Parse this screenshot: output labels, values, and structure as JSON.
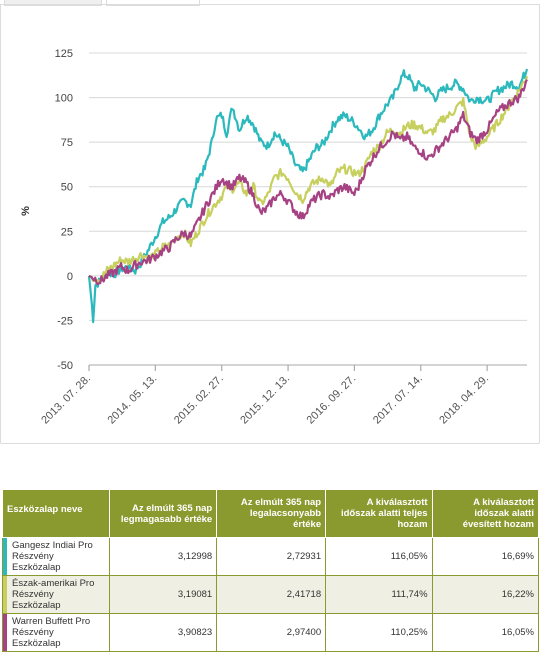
{
  "chart_data": {
    "type": "line",
    "ylabel": "%",
    "ylim": [
      -50,
      125
    ],
    "yticks": [
      -50,
      -25,
      0,
      25,
      50,
      75,
      100,
      125
    ],
    "xticks": [
      "2013. 07. 28.",
      "2014. 05. 13.",
      "2015. 02. 27.",
      "2015. 12. 13.",
      "2016. 09. 27.",
      "2017. 07. 14.",
      "2018. 04. 29."
    ],
    "x_start": "2013-07-28",
    "x_end": "2018-10-20",
    "grid": true,
    "series": [
      {
        "name": "Gangesz Indiai Pro Részvény Eszközalap",
        "color": "#2bb9bd",
        "points": [
          [
            "2013-07-28",
            0
          ],
          [
            "2013-08-05",
            -10
          ],
          [
            "2013-08-15",
            -24
          ],
          [
            "2013-08-25",
            -5
          ],
          [
            "2013-09-15",
            -3
          ],
          [
            "2013-10-15",
            2
          ],
          [
            "2013-11-15",
            1
          ],
          [
            "2013-12-15",
            4
          ],
          [
            "2014-01-15",
            5
          ],
          [
            "2014-02-15",
            3
          ],
          [
            "2014-03-15",
            8
          ],
          [
            "2014-04-15",
            15
          ],
          [
            "2014-05-13",
            22
          ],
          [
            "2014-06-15",
            30
          ],
          [
            "2014-07-15",
            33
          ],
          [
            "2014-08-15",
            38
          ],
          [
            "2014-09-15",
            42
          ],
          [
            "2014-10-15",
            40
          ],
          [
            "2014-11-15",
            55
          ],
          [
            "2014-12-15",
            60
          ],
          [
            "2015-01-15",
            75
          ],
          [
            "2015-02-01",
            88
          ],
          [
            "2015-02-27",
            90
          ],
          [
            "2015-03-20",
            80
          ],
          [
            "2015-04-15",
            95
          ],
          [
            "2015-05-15",
            82
          ],
          [
            "2015-06-15",
            90
          ],
          [
            "2015-07-15",
            85
          ],
          [
            "2015-08-15",
            75
          ],
          [
            "2015-09-15",
            73
          ],
          [
            "2015-10-15",
            80
          ],
          [
            "2015-11-15",
            76
          ],
          [
            "2015-12-13",
            72
          ],
          [
            "2016-01-15",
            62
          ],
          [
            "2016-02-15",
            58
          ],
          [
            "2016-03-15",
            65
          ],
          [
            "2016-04-15",
            72
          ],
          [
            "2016-05-15",
            74
          ],
          [
            "2016-06-15",
            82
          ],
          [
            "2016-07-15",
            88
          ],
          [
            "2016-08-15",
            90
          ],
          [
            "2016-09-27",
            86
          ],
          [
            "2016-10-15",
            83
          ],
          [
            "2016-11-15",
            78
          ],
          [
            "2016-12-15",
            82
          ],
          [
            "2017-01-15",
            90
          ],
          [
            "2017-02-15",
            96
          ],
          [
            "2017-03-15",
            100
          ],
          [
            "2017-04-15",
            110
          ],
          [
            "2017-05-01",
            113
          ],
          [
            "2017-05-20",
            112
          ],
          [
            "2017-06-15",
            105
          ],
          [
            "2017-07-14",
            108
          ],
          [
            "2017-08-15",
            104
          ],
          [
            "2017-09-15",
            100
          ],
          [
            "2017-10-15",
            104
          ],
          [
            "2017-11-15",
            106
          ],
          [
            "2017-12-15",
            108
          ],
          [
            "2018-01-15",
            105
          ],
          [
            "2018-02-15",
            98
          ],
          [
            "2018-03-15",
            100
          ],
          [
            "2018-04-29",
            98
          ],
          [
            "2018-06-15",
            104
          ],
          [
            "2018-08-15",
            108
          ],
          [
            "2018-09-15",
            106
          ],
          [
            "2018-10-20",
            116
          ]
        ]
      },
      {
        "name": "Észak-amerikai Pro Részvény Eszközalap",
        "color": "#c7d05e",
        "points": [
          [
            "2013-07-28",
            0
          ],
          [
            "2013-09-15",
            -2
          ],
          [
            "2013-10-15",
            3
          ],
          [
            "2013-11-15",
            6
          ],
          [
            "2013-12-15",
            9
          ],
          [
            "2014-01-15",
            8
          ],
          [
            "2014-02-15",
            10
          ],
          [
            "2014-03-15",
            12
          ],
          [
            "2014-04-15",
            10
          ],
          [
            "2014-05-13",
            12
          ],
          [
            "2014-06-15",
            16
          ],
          [
            "2014-07-15",
            17
          ],
          [
            "2014-08-15",
            22
          ],
          [
            "2014-09-15",
            24
          ],
          [
            "2014-10-15",
            18
          ],
          [
            "2014-11-15",
            25
          ],
          [
            "2014-12-15",
            32
          ],
          [
            "2015-01-15",
            38
          ],
          [
            "2015-02-27",
            45
          ],
          [
            "2015-03-20",
            50
          ],
          [
            "2015-04-15",
            49
          ],
          [
            "2015-05-15",
            52
          ],
          [
            "2015-06-15",
            46
          ],
          [
            "2015-07-15",
            50
          ],
          [
            "2015-08-15",
            40
          ],
          [
            "2015-09-15",
            45
          ],
          [
            "2015-10-15",
            55
          ],
          [
            "2015-11-15",
            58
          ],
          [
            "2015-12-13",
            55
          ],
          [
            "2016-01-15",
            47
          ],
          [
            "2016-02-15",
            43
          ],
          [
            "2016-03-15",
            50
          ],
          [
            "2016-04-15",
            53
          ],
          [
            "2016-05-15",
            55
          ],
          [
            "2016-06-15",
            50
          ],
          [
            "2016-07-15",
            58
          ],
          [
            "2016-08-15",
            60
          ],
          [
            "2016-09-27",
            58
          ],
          [
            "2016-10-15",
            57
          ],
          [
            "2016-11-15",
            62
          ],
          [
            "2016-12-15",
            70
          ],
          [
            "2017-01-15",
            73
          ],
          [
            "2017-02-15",
            80
          ],
          [
            "2017-03-15",
            82
          ],
          [
            "2017-04-15",
            80
          ],
          [
            "2017-05-15",
            84
          ],
          [
            "2017-06-15",
            85
          ],
          [
            "2017-07-14",
            83
          ],
          [
            "2017-08-15",
            80
          ],
          [
            "2017-09-15",
            82
          ],
          [
            "2017-10-15",
            88
          ],
          [
            "2017-11-15",
            90
          ],
          [
            "2017-12-15",
            94
          ],
          [
            "2018-01-15",
            98
          ],
          [
            "2018-02-15",
            78
          ],
          [
            "2018-03-15",
            72
          ],
          [
            "2018-04-29",
            78
          ],
          [
            "2018-06-15",
            86
          ],
          [
            "2018-08-15",
            98
          ],
          [
            "2018-09-15",
            104
          ],
          [
            "2018-10-20",
            112
          ]
        ]
      },
      {
        "name": "Warren Buffett Pro Részvény Eszközalap",
        "color": "#a64283",
        "points": [
          [
            "2013-07-28",
            0
          ],
          [
            "2013-09-15",
            -3
          ],
          [
            "2013-10-15",
            0
          ],
          [
            "2013-11-15",
            2
          ],
          [
            "2013-12-15",
            5
          ],
          [
            "2014-01-15",
            3
          ],
          [
            "2014-02-15",
            6
          ],
          [
            "2014-03-15",
            8
          ],
          [
            "2014-04-15",
            9
          ],
          [
            "2014-05-13",
            11
          ],
          [
            "2014-06-15",
            14
          ],
          [
            "2014-07-15",
            16
          ],
          [
            "2014-08-15",
            21
          ],
          [
            "2014-09-15",
            24
          ],
          [
            "2014-10-15",
            22
          ],
          [
            "2014-11-15",
            30
          ],
          [
            "2014-12-15",
            38
          ],
          [
            "2015-01-15",
            45
          ],
          [
            "2015-02-27",
            55
          ],
          [
            "2015-03-20",
            52
          ],
          [
            "2015-04-15",
            50
          ],
          [
            "2015-05-15",
            55
          ],
          [
            "2015-06-15",
            52
          ],
          [
            "2015-07-15",
            45
          ],
          [
            "2015-08-15",
            35
          ],
          [
            "2015-09-15",
            38
          ],
          [
            "2015-10-15",
            44
          ],
          [
            "2015-11-15",
            46
          ],
          [
            "2015-12-13",
            42
          ],
          [
            "2016-01-15",
            36
          ],
          [
            "2016-02-15",
            33
          ],
          [
            "2016-03-15",
            40
          ],
          [
            "2016-04-15",
            44
          ],
          [
            "2016-05-15",
            46
          ],
          [
            "2016-06-15",
            44
          ],
          [
            "2016-07-15",
            48
          ],
          [
            "2016-08-15",
            50
          ],
          [
            "2016-09-27",
            46
          ],
          [
            "2016-10-15",
            50
          ],
          [
            "2016-11-15",
            60
          ],
          [
            "2016-12-15",
            66
          ],
          [
            "2017-01-15",
            72
          ],
          [
            "2017-02-15",
            76
          ],
          [
            "2017-03-15",
            80
          ],
          [
            "2017-04-15",
            76
          ],
          [
            "2017-05-15",
            78
          ],
          [
            "2017-06-15",
            72
          ],
          [
            "2017-07-14",
            70
          ],
          [
            "2017-08-15",
            66
          ],
          [
            "2017-09-15",
            70
          ],
          [
            "2017-10-15",
            74
          ],
          [
            "2017-11-15",
            78
          ],
          [
            "2017-12-15",
            82
          ],
          [
            "2018-01-15",
            90
          ],
          [
            "2018-02-15",
            80
          ],
          [
            "2018-03-15",
            76
          ],
          [
            "2018-04-29",
            82
          ],
          [
            "2018-06-15",
            92
          ],
          [
            "2018-08-15",
            98
          ],
          [
            "2018-09-15",
            100
          ],
          [
            "2018-10-20",
            110
          ]
        ]
      }
    ]
  },
  "table": {
    "headers": [
      "Eszközalap neve",
      "Az elmúlt 365 nap legmagasabb értéke",
      "Az elmúlt 365 nap legalacsonyabb értéke",
      "A kiválasztott időszak alatti teljes hozam",
      "A kiválasztott időszak alatti évesített hozam"
    ],
    "rows": [
      {
        "name": "Gangesz Indiai Pro Részvény Eszközalap",
        "color": "#2bb9bd",
        "max": "3,12998",
        "min": "2,72931",
        "total": "116,05%",
        "annual": "16,69%"
      },
      {
        "name": "Észak-amerikai Pro Részvény Eszközalap",
        "color": "#c7d05e",
        "max": "3,19081",
        "min": "2,41718",
        "total": "111,74%",
        "annual": "16,22%"
      },
      {
        "name": "Warren Buffett Pro Részvény Eszközalap",
        "color": "#a64283",
        "max": "3,90823",
        "min": "2,97400",
        "total": "110,25%",
        "annual": "16,05%"
      }
    ]
  }
}
